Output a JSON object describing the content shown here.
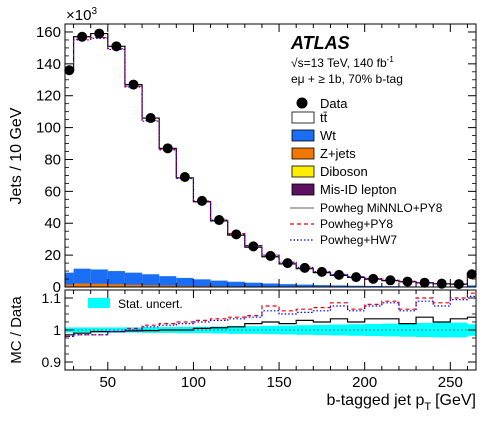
{
  "chart_data": [
    {
      "type": "bar",
      "panel": "main",
      "exponent_label": "×10",
      "exponent_power": "3",
      "ylabel": "Jets / 10 GeV",
      "xlim": [
        25,
        265
      ],
      "ylim": [
        0,
        165000
      ],
      "yticks": [
        {
          "v": 0,
          "label": "0"
        },
        {
          "v": 20000,
          "label": "20"
        },
        {
          "v": 40000,
          "label": "40"
        },
        {
          "v": 60000,
          "label": "60"
        },
        {
          "v": 80000,
          "label": "80"
        },
        {
          "v": 100000,
          "label": "100"
        },
        {
          "v": 120000,
          "label": "120"
        },
        {
          "v": 140000,
          "label": "140"
        },
        {
          "v": 160000,
          "label": "160"
        }
      ],
      "bin_edges": [
        25,
        30,
        40,
        50,
        60,
        70,
        80,
        90,
        100,
        110,
        120,
        130,
        140,
        150,
        160,
        170,
        180,
        190,
        200,
        210,
        220,
        230,
        240,
        250,
        260,
        265
      ],
      "data": {
        "x": [
          27.5,
          35,
          45,
          55,
          65,
          75,
          85,
          95,
          105,
          115,
          125,
          135,
          145,
          155,
          165,
          175,
          185,
          195,
          205,
          215,
          225,
          235,
          245,
          255,
          262.5
        ],
        "y": [
          136000,
          157000,
          159000,
          151000,
          127000,
          106000,
          87000,
          69000,
          54000,
          42000,
          33000,
          25500,
          19500,
          15000,
          12000,
          9500,
          7600,
          6200,
          5100,
          4200,
          3400,
          2700,
          2100,
          1800,
          8000
        ]
      },
      "series": [
        {
          "name": "Powheg MiNNLO+PY8",
          "color": "#808080",
          "style": "solid",
          "values": [
            136000,
            157000,
            159000,
            151000,
            127000,
            106000,
            87000,
            68500,
            53500,
            41500,
            32500,
            25000,
            19000,
            14500,
            11500,
            9000,
            7300,
            6000,
            4900,
            4000,
            3300,
            2600,
            2000,
            1700,
            8000
          ]
        },
        {
          "name": "Powheg+PY8",
          "color": "#e8000b",
          "style": "dashed",
          "values": [
            136000,
            155500,
            156500,
            149500,
            126000,
            104500,
            86500,
            68500,
            54000,
            42500,
            33500,
            26000,
            20000,
            15500,
            12500,
            9800,
            8000,
            6500,
            5400,
            4400,
            3600,
            2800,
            2200,
            1900,
            8500
          ]
        },
        {
          "name": "Powheg+HW7",
          "color": "#0000ff",
          "style": "dotted",
          "values": [
            136000,
            155000,
            156000,
            149000,
            125500,
            104000,
            86000,
            68000,
            53500,
            42000,
            33000,
            26000,
            20000,
            15500,
            12300,
            9700,
            7900,
            6400,
            5300,
            4300,
            3500,
            2800,
            2100,
            1900,
            8400
          ]
        }
      ],
      "wt": [
        9000,
        11500,
        11000,
        10000,
        9000,
        8000,
        6800,
        5700,
        4800,
        4000,
        3300,
        2700,
        2200,
        1800,
        1500,
        1200,
        1000,
        800,
        650,
        500,
        400,
        300,
        250,
        200,
        1000
      ],
      "zjets": [
        1500,
        2200,
        2000,
        1700,
        1400,
        1100,
        900,
        700,
        550,
        450,
        350,
        280,
        220,
        180,
        150,
        120,
        100,
        80,
        60,
        50,
        40,
        30,
        25,
        20,
        100
      ],
      "legend": {
        "data": "Data",
        "entries": [
          {
            "label": "tt̄",
            "color": "#ffffff"
          },
          {
            "label": "Wt",
            "color": "#1a6ef5"
          },
          {
            "label": "Z+jets",
            "color": "#f07800"
          },
          {
            "label": "Diboson",
            "color": "#ffee00"
          },
          {
            "label": "Mis-ID lepton",
            "color": "#5c1060"
          }
        ]
      }
    },
    {
      "type": "line",
      "panel": "ratio",
      "ylabel": "MC / Data",
      "xlabel": "b-tagged jet p",
      "xlabel_sub": "T",
      "xlabel_unit": "[GeV]",
      "xlim": [
        25,
        265
      ],
      "ylim": [
        0.875,
        1.125
      ],
      "xticks": [
        {
          "v": 50,
          "label": "50"
        },
        {
          "v": 100,
          "label": "100"
        },
        {
          "v": 150,
          "label": "150"
        },
        {
          "v": 200,
          "label": "200"
        },
        {
          "v": 250,
          "label": "250"
        }
      ],
      "yticks": [
        {
          "v": 0.9,
          "label": "0.9"
        },
        {
          "v": 1,
          "label": "1"
        },
        {
          "v": 1.1,
          "label": "1.1"
        }
      ],
      "bin_edges": [
        25,
        30,
        40,
        50,
        60,
        70,
        80,
        90,
        100,
        110,
        120,
        130,
        140,
        150,
        160,
        170,
        180,
        190,
        200,
        210,
        220,
        230,
        240,
        250,
        260,
        265
      ],
      "stat_uncert_label": "Stat. uncert.",
      "stat_uncert_color": "#00ffff",
      "stat_uncert": [
        0.008,
        0.008,
        0.008,
        0.008,
        0.008,
        0.009,
        0.009,
        0.01,
        0.01,
        0.011,
        0.012,
        0.012,
        0.013,
        0.014,
        0.015,
        0.016,
        0.017,
        0.018,
        0.019,
        0.02,
        0.021,
        0.022,
        0.023,
        0.023,
        0.018
      ],
      "series": [
        {
          "name": "Powheg MiNNLO+PY8",
          "color": "#000000",
          "style": "solid",
          "values": [
            0.985,
            0.99,
            0.995,
            0.995,
            0.997,
            0.998,
            1.0,
            1.0,
            1.005,
            1.007,
            1.01,
            1.02,
            1.025,
            1.02,
            1.03,
            1.025,
            1.035,
            1.025,
            1.035,
            1.035,
            1.02,
            1.04,
            1.025,
            1.035,
            1.04
          ]
        },
        {
          "name": "Powheg+PY8",
          "color": "#e8000b",
          "style": "dashed",
          "values": [
            0.98,
            0.985,
            0.985,
            0.995,
            1.005,
            1.015,
            1.02,
            1.025,
            1.03,
            1.035,
            1.04,
            1.045,
            1.075,
            1.06,
            1.065,
            1.07,
            1.085,
            1.065,
            1.08,
            1.09,
            1.065,
            1.1,
            1.085,
            1.1,
            1.115
          ]
        },
        {
          "name": "Powheg+HW7",
          "color": "#0000ff",
          "style": "dotted",
          "values": [
            0.98,
            0.985,
            0.985,
            0.995,
            1.0,
            1.01,
            1.015,
            1.02,
            1.025,
            1.03,
            1.035,
            1.04,
            1.06,
            1.05,
            1.055,
            1.06,
            1.075,
            1.06,
            1.075,
            1.085,
            1.06,
            1.09,
            1.075,
            1.095,
            1.105
          ]
        }
      ]
    }
  ],
  "annotations": {
    "atlas": "ATLAS",
    "energy": "√s=13 TeV, 140 fb",
    "energy_sup": "-1",
    "selection": "eμ + ≥ 1b, 70% b-tag"
  }
}
